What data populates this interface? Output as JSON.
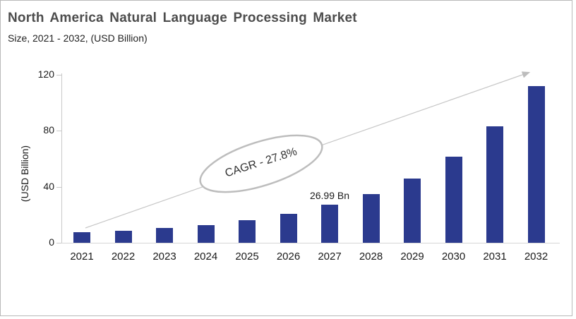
{
  "header": {
    "title": "North America Natural Language Processing Market",
    "subtitle": "Size, 2021 - 2032, (USD Billion)"
  },
  "chart_data": {
    "type": "bar",
    "title": "North America Natural Language Processing Market",
    "subtitle": "Size, 2021 - 2032, (USD Billion)",
    "categories": [
      "2021",
      "2022",
      "2023",
      "2024",
      "2025",
      "2026",
      "2027",
      "2028",
      "2029",
      "2030",
      "2031",
      "2032"
    ],
    "values": [
      7.6,
      8.4,
      10.6,
      12.8,
      16.2,
      20.7,
      26.99,
      34.8,
      46,
      61.5,
      83,
      112
    ],
    "xlabel": "",
    "ylabel": "(USD Billion)",
    "yticks": [
      0,
      40,
      80,
      120
    ],
    "ylim": [
      0,
      120
    ],
    "grid": false,
    "legend": "none",
    "bar_color": "#2b3a8e",
    "data_label": {
      "category": "2027",
      "text": "26.99 Bn"
    },
    "annotation": {
      "text": "CAGR - 27.8%"
    }
  },
  "colors": {
    "bar": "#2b3a8e",
    "title_text": "#4d4d4d",
    "body_text": "#1a1a1a",
    "axis_gray": "#c9c9c9",
    "annotation_gray": "#bdbdbd"
  }
}
